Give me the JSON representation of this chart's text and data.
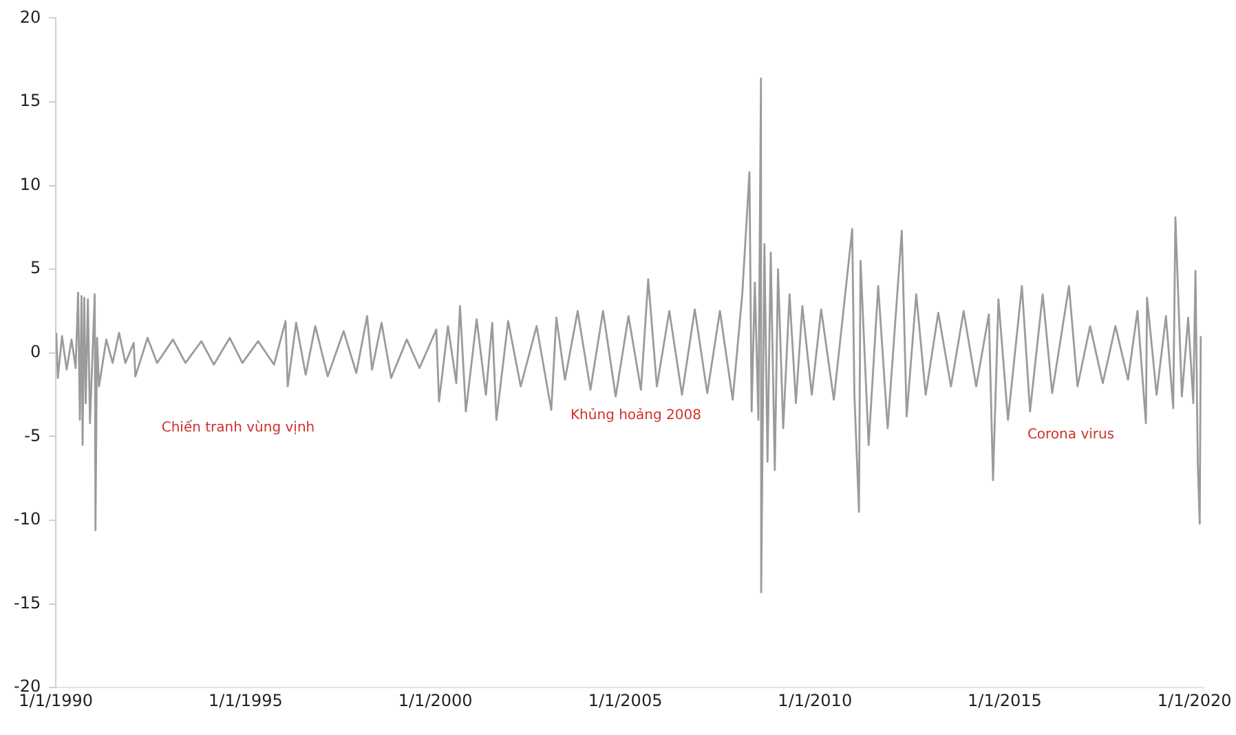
{
  "chart_data": {
    "type": "line",
    "x": [
      "1990-01-05",
      "1990-01-20",
      "1990-03-01",
      "1990-04-15",
      "1990-06-01",
      "1990-07-10",
      "1990-08-03",
      "1990-08-20",
      "1990-09-05",
      "1990-09-15",
      "1990-10-01",
      "1990-10-15",
      "1990-11-05",
      "1990-11-25",
      "1991-01-10",
      "1991-01-17",
      "1991-02-01",
      "1991-02-20",
      "1991-05-01",
      "1991-07-01",
      "1991-09-01",
      "1991-11-01",
      "1992-01-20",
      "1992-02-05",
      "1992-06-01",
      "1992-09-01",
      "1993-02-01",
      "1993-06-01",
      "1993-11-01",
      "1994-03-01",
      "1994-08-01",
      "1994-12-01",
      "1995-05-01",
      "1995-10-01",
      "1996-01-20",
      "1996-02-10",
      "1996-05-01",
      "1996-08-01",
      "1996-11-01",
      "1997-03-01",
      "1997-08-01",
      "1997-12-01",
      "1998-03-15",
      "1998-05-01",
      "1998-08-01",
      "1998-11-01",
      "1999-04-01",
      "1999-08-01",
      "2000-01-10",
      "2000-02-05",
      "2000-05-01",
      "2000-07-20",
      "2000-08-25",
      "2000-10-20",
      "2001-02-01",
      "2001-05-01",
      "2001-07-01",
      "2001-08-10",
      "2001-12-01",
      "2002-04-01",
      "2002-09-01",
      "2003-01-20",
      "2003-03-10",
      "2003-06-01",
      "2003-10-01",
      "2004-02-01",
      "2004-06-01",
      "2004-10-01",
      "2005-02-01",
      "2005-06-01",
      "2005-08-10",
      "2005-11-01",
      "2006-03-01",
      "2006-07-01",
      "2006-11-01",
      "2007-03-01",
      "2007-07-01",
      "2007-11-01",
      "2008-02-01",
      "2008-04-10",
      "2008-05-01",
      "2008-06-01",
      "2008-07-05",
      "2008-07-30",
      "2008-08-01",
      "2008-09-01",
      "2008-10-01",
      "2008-11-01",
      "2008-12-10",
      "2009-01-10",
      "2009-03-01",
      "2009-05-01",
      "2009-07-01",
      "2009-09-01",
      "2009-12-01",
      "2010-03-01",
      "2010-07-01",
      "2010-12-25",
      "2011-01-15",
      "2011-02-28",
      "2011-03-15",
      "2011-06-01",
      "2011-09-01",
      "2011-12-01",
      "2012-04-15",
      "2012-06-01",
      "2012-09-01",
      "2012-12-01",
      "2013-04-01",
      "2013-08-01",
      "2013-12-01",
      "2014-04-01",
      "2014-08-01",
      "2014-09-10",
      "2014-11-01",
      "2015-02-01",
      "2015-06-15",
      "2015-09-01",
      "2016-01-01",
      "2016-04-01",
      "2016-09-10",
      "2016-12-01",
      "2017-04-01",
      "2017-08-01",
      "2017-12-01",
      "2018-04-01",
      "2018-07-01",
      "2018-09-20",
      "2018-10-01",
      "2019-01-01",
      "2019-04-01",
      "2019-06-10",
      "2019-07-01",
      "2019-09-01",
      "2019-11-01",
      "2019-12-20",
      "2020-01-10",
      "2020-02-01",
      "2020-02-20",
      "2020-03-01"
    ],
    "values": [
      1.2,
      -1.5,
      1.0,
      -1.0,
      0.8,
      -0.9,
      3.6,
      -4.0,
      3.4,
      -5.5,
      3.3,
      -3.0,
      3.2,
      -4.2,
      3.5,
      -10.6,
      0.9,
      -2.0,
      0.8,
      -0.6,
      1.2,
      -0.6,
      0.6,
      -1.4,
      0.9,
      -0.6,
      0.8,
      -0.6,
      0.7,
      -0.7,
      0.9,
      -0.6,
      0.7,
      -0.7,
      1.9,
      -2.0,
      1.8,
      -1.3,
      1.6,
      -1.4,
      1.3,
      -1.2,
      2.2,
      -1.0,
      1.8,
      -1.5,
      0.8,
      -0.9,
      1.4,
      -2.9,
      1.6,
      -1.8,
      2.8,
      -3.5,
      2.0,
      -2.5,
      1.8,
      -4.0,
      1.9,
      -2.0,
      1.6,
      -3.4,
      2.1,
      -1.6,
      2.5,
      -2.2,
      2.5,
      -2.6,
      2.2,
      -2.2,
      4.4,
      -2.0,
      2.5,
      -2.5,
      2.6,
      -2.4,
      2.5,
      -2.8,
      3.5,
      10.8,
      -3.5,
      4.2,
      -4.0,
      16.4,
      -14.3,
      6.5,
      -6.5,
      6.0,
      -7.0,
      5.0,
      -4.5,
      3.5,
      -3.0,
      2.8,
      -2.5,
      2.6,
      -2.8,
      7.4,
      -2.5,
      -9.5,
      5.5,
      -5.5,
      4.0,
      -4.5,
      7.3,
      -3.8,
      3.5,
      -2.5,
      2.4,
      -2.0,
      2.5,
      -2.0,
      2.3,
      -7.6,
      3.2,
      -4.0,
      4.0,
      -3.5,
      3.5,
      -2.4,
      4.0,
      -2.0,
      1.6,
      -1.8,
      1.6,
      -1.6,
      2.5,
      -4.2,
      3.3,
      -2.5,
      2.2,
      -3.3,
      8.1,
      -2.6,
      2.1,
      -3.0,
      4.9,
      -6.5,
      -10.2,
      1.0
    ],
    "color": "#9b9b9b",
    "xlim": [
      "1990-01-01",
      "2020-04-01"
    ],
    "xticks": [
      {
        "value": "1990-01-01",
        "label": "1/1/1990"
      },
      {
        "value": "1995-01-01",
        "label": "1/1/1995"
      },
      {
        "value": "2000-01-01",
        "label": "1/1/2000"
      },
      {
        "value": "2005-01-01",
        "label": "1/1/2005"
      },
      {
        "value": "2010-01-01",
        "label": "1/1/2010"
      },
      {
        "value": "2015-01-01",
        "label": "1/1/2015"
      },
      {
        "value": "2020-01-01",
        "label": "1/1/2020"
      }
    ],
    "ylim": [
      -20,
      20
    ],
    "yticks": [
      -20,
      -15,
      -10,
      -5,
      0,
      5,
      10,
      15,
      20
    ],
    "annotations": [
      "Chiến tranh vùng vịnh",
      "Khủng hoảng 2008",
      "Corona virus"
    ],
    "grid": false,
    "legend": false,
    "marker": "none",
    "line_style": "solid"
  }
}
